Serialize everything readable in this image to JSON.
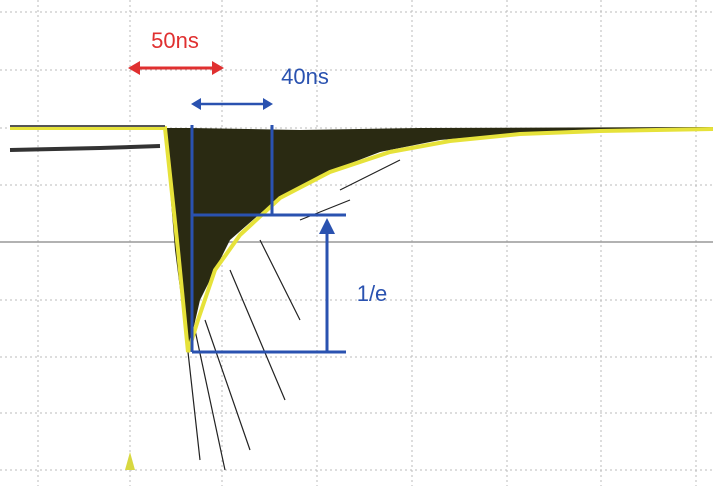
{
  "annotations": {
    "red_interval": "50ns",
    "blue_interval": "40ns",
    "ratio": "1/e"
  }
}
